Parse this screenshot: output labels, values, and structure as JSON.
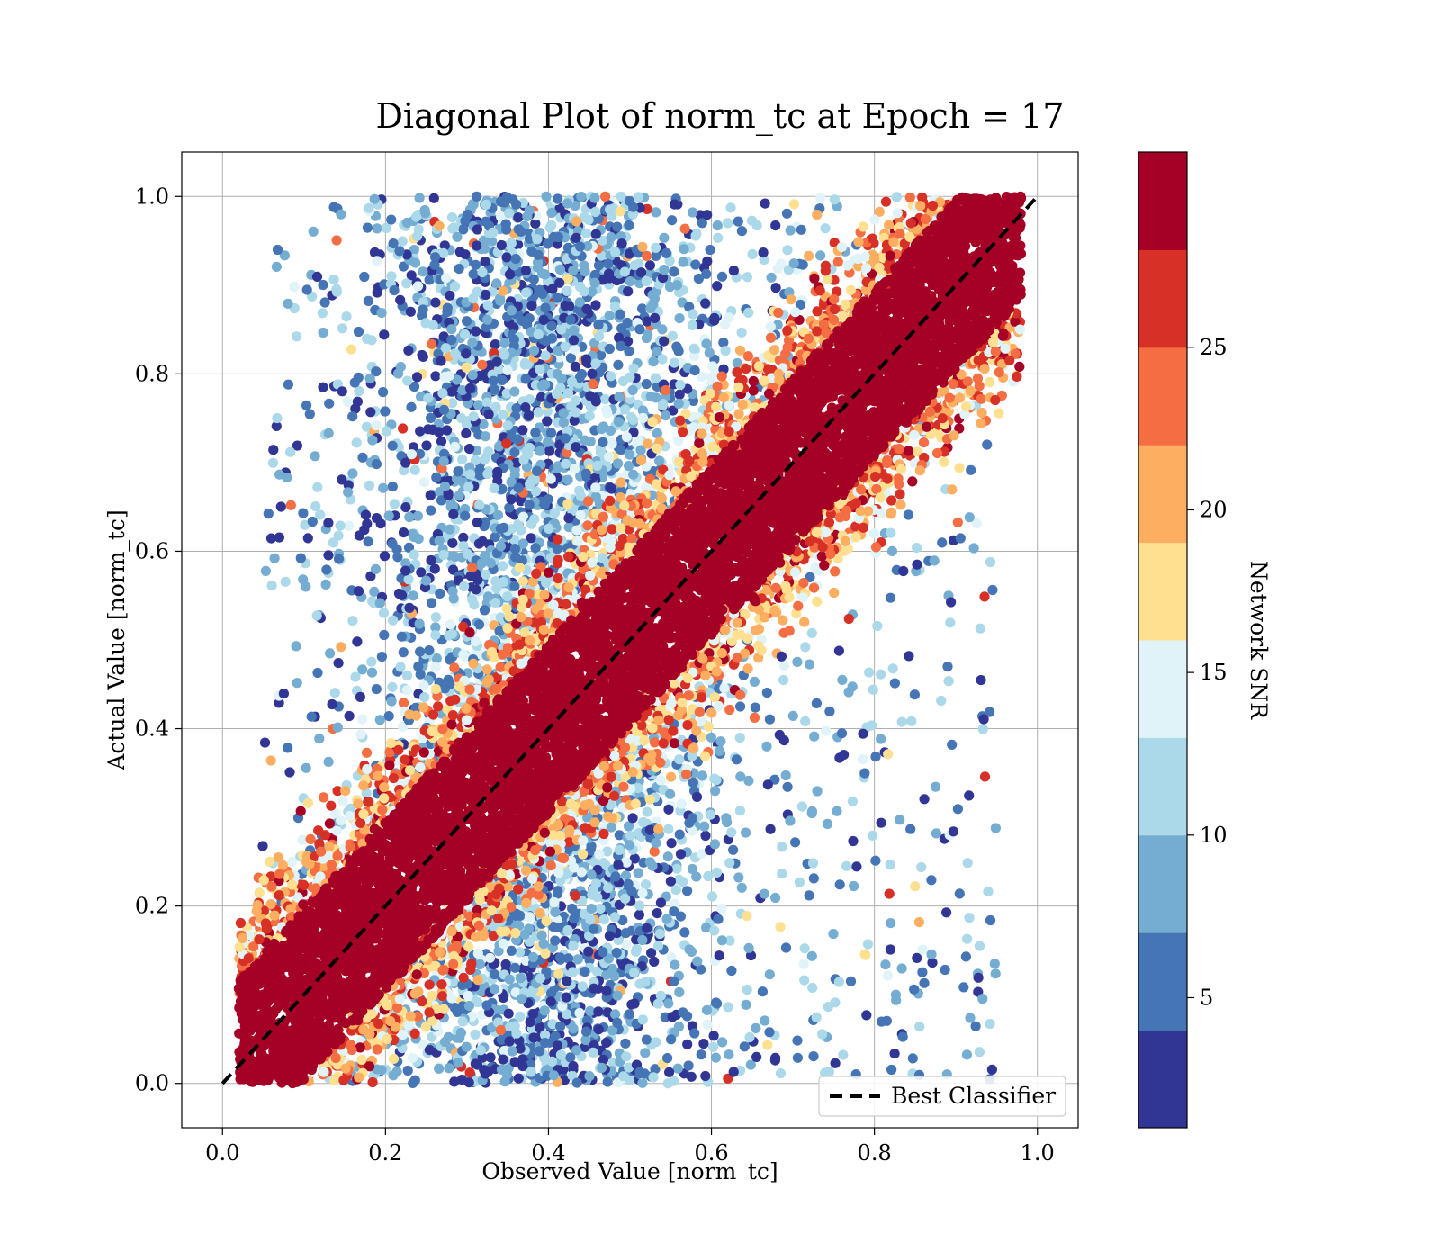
{
  "chart_data": {
    "type": "scatter",
    "title": "Diagonal Plot of norm_tc at Epoch = 17",
    "xlabel": "Observed Value [norm_tc]",
    "ylabel": "Actual Value [norm_tc]",
    "xlim": [
      -0.05,
      1.05
    ],
    "ylim": [
      -0.05,
      1.05
    ],
    "x_ticks": [
      "0.0",
      "0.2",
      "0.4",
      "0.6",
      "0.8",
      "1.0"
    ],
    "y_ticks": [
      "0.0",
      "0.2",
      "0.4",
      "0.6",
      "0.8",
      "1.0"
    ],
    "grid": true,
    "color_by": "Network SNR",
    "density_regions": [
      {
        "snr_class": "high",
        "description_x_range": [
          0.0,
          1.0
        ],
        "band_halfwidth_y": 0.11
      },
      {
        "snr_class": "low",
        "x_range": [
          0.15,
          0.65
        ],
        "y_range": [
          0.0,
          1.0
        ]
      },
      {
        "snr_class": "low_sparse",
        "x_range": [
          0.05,
          0.95
        ],
        "y_range": [
          0.0,
          1.0
        ]
      }
    ],
    "reference_line": {
      "name": "Best Classifier",
      "x": [
        0.0,
        1.0
      ],
      "y": [
        0.0,
        1.0
      ],
      "style": "dashed",
      "color": "#000000"
    },
    "legend": {
      "entries": [
        "Best Classifier"
      ],
      "placement": "lower-right"
    },
    "colorbar": {
      "label": "Network SNR",
      "range": [
        1,
        31
      ],
      "ticks": [
        "5",
        "10",
        "15",
        "20",
        "25"
      ],
      "tick_values": [
        5,
        10,
        15,
        20,
        25
      ],
      "bins": [
        {
          "from": 1.0,
          "to": 3.9,
          "color": "#313695"
        },
        {
          "from": 3.9,
          "to": 6.8,
          "color": "#4575b4"
        },
        {
          "from": 6.8,
          "to": 9.7,
          "color": "#74add1"
        },
        {
          "from": 9.7,
          "to": 12.6,
          "color": "#abd9e9"
        },
        {
          "from": 12.6,
          "to": 15.5,
          "color": "#e0f3f8"
        },
        {
          "from": 15.5,
          "to": 18.4,
          "color": "#fee090"
        },
        {
          "from": 18.4,
          "to": 21.3,
          "color": "#fdae61"
        },
        {
          "from": 21.3,
          "to": 24.2,
          "color": "#f46d43"
        },
        {
          "from": 24.2,
          "to": 27.1,
          "color": "#d73027"
        },
        {
          "from": 27.1,
          "to": 30.0,
          "color": "#a50026"
        }
      ]
    }
  }
}
